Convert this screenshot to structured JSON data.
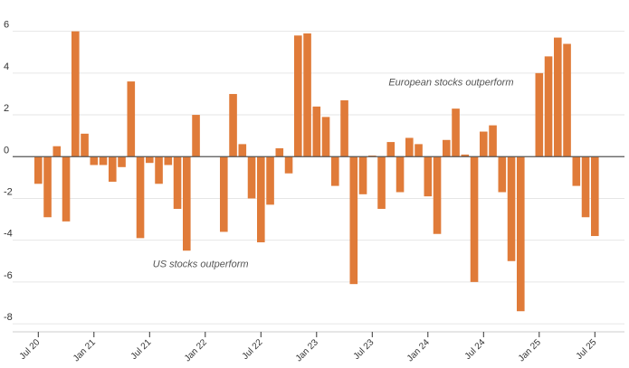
{
  "chart_data": {
    "type": "bar",
    "title": "",
    "xlabel": "",
    "ylabel": "",
    "ylim": [
      -8.3,
      7.5
    ],
    "grid": true,
    "bar_color": "#e07b39",
    "y_ticks": [
      -8,
      -6,
      -4,
      -2,
      0,
      2,
      4,
      6
    ],
    "y_tick_labels": [
      "-8",
      "-6",
      "-4",
      "-2",
      "0",
      "2",
      "4",
      "6"
    ],
    "x_tick_labels": [
      {
        "label": "Jul 20",
        "index": 0
      },
      {
        "label": "Jan 21",
        "index": 6
      },
      {
        "label": "Jul 21",
        "index": 12
      },
      {
        "label": "Jan 22",
        "index": 18
      },
      {
        "label": "Jul 22",
        "index": 24
      },
      {
        "label": "Jan 23",
        "index": 30
      },
      {
        "label": "Jul 23",
        "index": 36
      },
      {
        "label": "Jan 24",
        "index": 42
      },
      {
        "label": "Jul 24",
        "index": 48
      },
      {
        "label": "Jan 25",
        "index": 54
      },
      {
        "label": "Jul 25",
        "index": 60
      }
    ],
    "categories": [
      "Jul 20",
      "Aug 20",
      "Sep 20",
      "Oct 20",
      "Nov 20",
      "Dec 20",
      "Jan 21",
      "Feb 21",
      "Mar 21",
      "Apr 21",
      "May 21",
      "Jun 21",
      "Jul 21",
      "Aug 21",
      "Sep 21",
      "Oct 21",
      "Nov 21",
      "Dec 21",
      "Jan 22",
      "Feb 22",
      "Mar 22",
      "Apr 22",
      "May 22",
      "Jun 22",
      "Jul 22",
      "Aug 22",
      "Sep 22",
      "Oct 22",
      "Nov 22",
      "Dec 22",
      "Jan 23",
      "Feb 23",
      "Mar 23",
      "Apr 23",
      "May 23",
      "Jun 23",
      "Jul 23",
      "Aug 23",
      "Sep 23",
      "Oct 23",
      "Nov 23",
      "Dec 23",
      "Jan 24",
      "Feb 24",
      "Mar 24",
      "Apr 24",
      "May 24",
      "Jun 24",
      "Jul 24",
      "Aug 24",
      "Sep 24",
      "Oct 24",
      "Nov 24",
      "Dec 24",
      "Jan 25",
      "Feb 25",
      "Mar 25",
      "Apr 25",
      "May 25",
      "Jun 25",
      "Jul 25"
    ],
    "values": [
      -1.3,
      -2.9,
      0.5,
      -3.1,
      6.0,
      1.1,
      -0.4,
      -0.4,
      -1.2,
      -0.5,
      3.6,
      -3.9,
      -0.3,
      -1.3,
      -0.4,
      -2.5,
      -4.5,
      2.0,
      0.0,
      0.0,
      -3.6,
      3.0,
      0.6,
      -2.0,
      -4.1,
      -2.3,
      0.4,
      -0.8,
      5.8,
      5.9,
      2.4,
      1.9,
      -1.4,
      2.7,
      -6.1,
      -1.8,
      0.05,
      -2.5,
      0.7,
      -1.7,
      0.9,
      0.6,
      -1.9,
      -3.7,
      0.8,
      2.3,
      0.1,
      -6.0,
      1.2,
      1.5,
      -1.7,
      -5.0,
      -7.4,
      0.0,
      4.0,
      4.8,
      5.7,
      5.4,
      -1.4,
      -2.9,
      -3.8
    ],
    "annotations": [
      {
        "text": "European stocks outperform",
        "x_index": 44.5,
        "y": 3.4
      },
      {
        "text": "US stocks outperform",
        "x_index": 17.5,
        "y": -5.3
      }
    ]
  }
}
